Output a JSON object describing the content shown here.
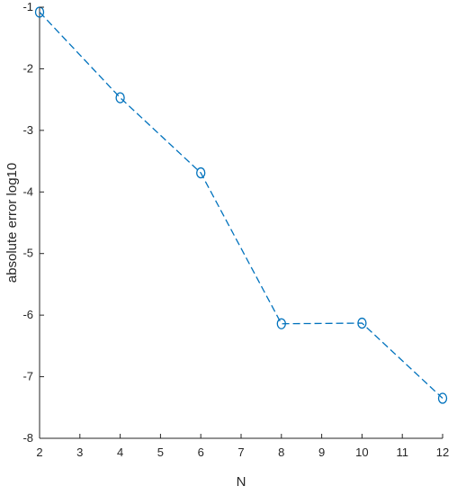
{
  "chart_data": {
    "type": "line",
    "title": "",
    "xlabel": "N",
    "ylabel": "absolute error log10",
    "xlim": [
      2,
      12
    ],
    "ylim": [
      -8,
      -1
    ],
    "xticks": [
      "2",
      "3",
      "4",
      "5",
      "6",
      "7",
      "8",
      "9",
      "10",
      "11",
      "12"
    ],
    "yticks": [
      "-8",
      "-7",
      "-6",
      "-5",
      "-4",
      "-3",
      "-2",
      "-1"
    ],
    "grid": false,
    "series": [
      {
        "color": "#0072BD",
        "line_style": "dashed",
        "marker": "circle",
        "x": [
          2,
          4,
          6,
          8,
          10,
          12
        ],
        "y": [
          -1.08,
          -2.47,
          -3.69,
          -6.14,
          -6.13,
          -7.35
        ]
      }
    ]
  }
}
